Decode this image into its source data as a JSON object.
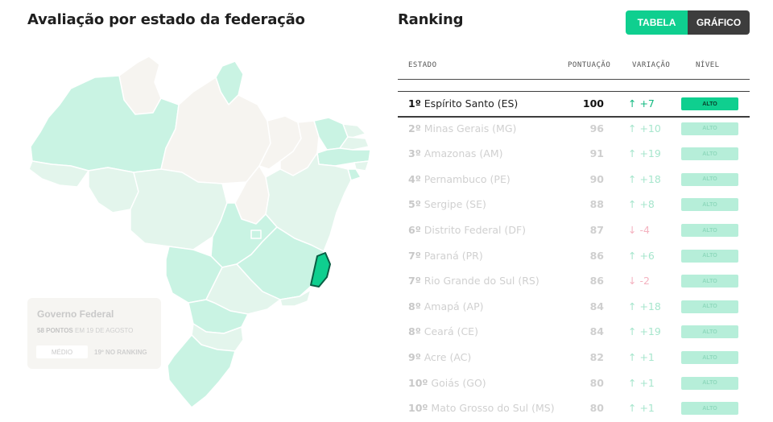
{
  "left_title": "Avaliação por estado da federação",
  "right_title": "Ranking",
  "toggle": {
    "table": "TABELA",
    "chart": "GRÁFICO"
  },
  "federal": {
    "title": "Governo Federal",
    "points": "58 PONTOS",
    "date": "EM 19 DE AGOSTO",
    "level": "MÉDIO",
    "rank": "19º NO RANKING"
  },
  "colors": {
    "accent": "#0fcf8f",
    "alto_light": "#b6eed9",
    "up": "#12b980",
    "down": "#e88a9e",
    "map_high": "#c9f3e3",
    "map_mid": "#e3f5ec",
    "map_low": "#f6f4f0"
  },
  "chart_data": {
    "type": "table",
    "columns": [
      "ESTADO",
      "PONTUAÇÃO",
      "VARIAÇÃO",
      "NÍVEL"
    ],
    "rows": [
      {
        "position": "1º",
        "state": "Espírito Santo (ES)",
        "score": 100,
        "variation": "+7",
        "direction": "up",
        "level": "ALTO",
        "selected": true
      },
      {
        "position": "2º",
        "state": "Minas Gerais (MG)",
        "score": 96,
        "variation": "+10",
        "direction": "up",
        "level": "ALTO"
      },
      {
        "position": "3º",
        "state": "Amazonas (AM)",
        "score": 91,
        "variation": "+19",
        "direction": "up",
        "level": "ALTO"
      },
      {
        "position": "4º",
        "state": "Pernambuco (PE)",
        "score": 90,
        "variation": "+18",
        "direction": "up",
        "level": "ALTO"
      },
      {
        "position": "5º",
        "state": "Sergipe (SE)",
        "score": 88,
        "variation": "+8",
        "direction": "up",
        "level": "ALTO"
      },
      {
        "position": "6º",
        "state": "Distrito Federal (DF)",
        "score": 87,
        "variation": "-4",
        "direction": "down",
        "level": "ALTO"
      },
      {
        "position": "7º",
        "state": "Paraná (PR)",
        "score": 86,
        "variation": "+6",
        "direction": "up",
        "level": "ALTO"
      },
      {
        "position": "7º",
        "state": "Rio Grande do Sul (RS)",
        "score": 86,
        "variation": "-2",
        "direction": "down",
        "level": "ALTO"
      },
      {
        "position": "8º",
        "state": "Amapá (AP)",
        "score": 84,
        "variation": "+18",
        "direction": "up",
        "level": "ALTO"
      },
      {
        "position": "8º",
        "state": "Ceará (CE)",
        "score": 84,
        "variation": "+19",
        "direction": "up",
        "level": "ALTO"
      },
      {
        "position": "9º",
        "state": "Acre (AC)",
        "score": 82,
        "variation": "+1",
        "direction": "up",
        "level": "ALTO"
      },
      {
        "position": "10º",
        "state": "Goiás (GO)",
        "score": 80,
        "variation": "+1",
        "direction": "up",
        "level": "ALTO"
      },
      {
        "position": "10º",
        "state": "Mato Grosso do Sul (MS)",
        "score": 80,
        "variation": "+1",
        "direction": "up",
        "level": "ALTO"
      }
    ]
  }
}
